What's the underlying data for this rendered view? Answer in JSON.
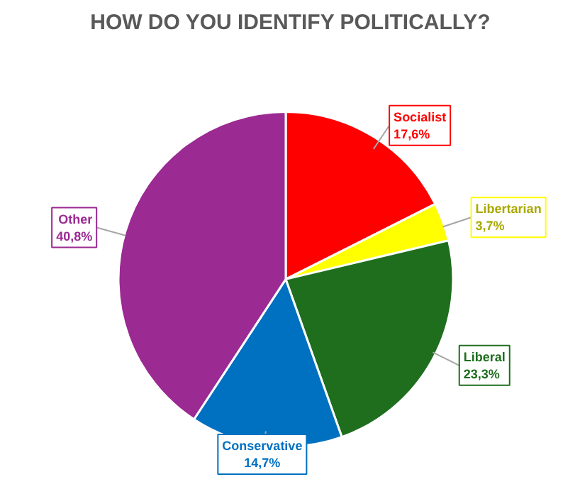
{
  "chart_data": {
    "type": "pie",
    "title": "HOW DO YOU IDENTIFY POLITICALLY?",
    "categories": [
      "Socialist",
      "Libertarian",
      "Liberal",
      "Conservative",
      "Other"
    ],
    "values": [
      17.6,
      3.7,
      23.3,
      14.7,
      40.8
    ],
    "value_labels": [
      "17,6%",
      "3,7%",
      "23,3%",
      "14,7%",
      "40,8%"
    ],
    "colors": [
      "#ff0000",
      "#ffff00",
      "#1e6e1e",
      "#0070c0",
      "#9b2a92"
    ]
  }
}
